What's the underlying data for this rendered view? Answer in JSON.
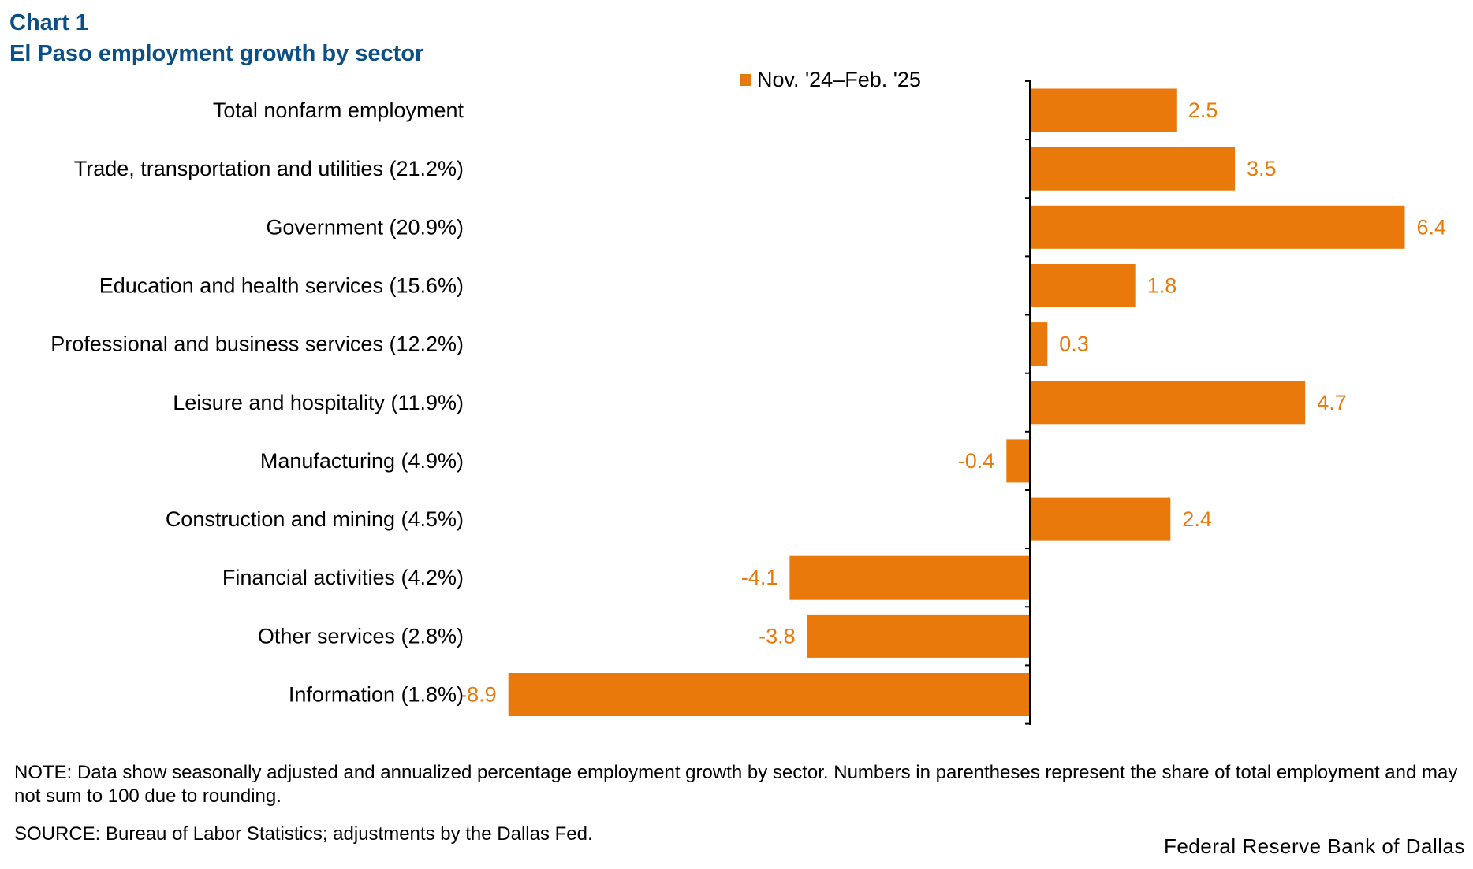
{
  "chart_label": "Chart 1",
  "colors": {
    "title": "#0b4f85",
    "bar": "#e8790a",
    "data_label": "#e8790a",
    "axis": "#000000"
  },
  "chart_data": {
    "type": "bar",
    "orientation": "horizontal",
    "title": "El Paso employment growth by sector",
    "categories": [
      "Total nonfarm employment",
      "Trade, transportation and utilities (21.2%)",
      "Government (20.9%)",
      "Education and health services (15.6%)",
      "Professional and business services (12.2%)",
      "Leisure and hospitality (11.9%)",
      "Manufacturing (4.9%)",
      "Construction and mining (4.5%)",
      "Financial activities (4.2%)",
      "Other services (2.8%)",
      "Information (1.8%)"
    ],
    "series": [
      {
        "name": "Nov. '24–Feb. '25",
        "values": [
          2.5,
          3.5,
          6.4,
          1.8,
          0.3,
          4.7,
          -0.4,
          2.4,
          -4.1,
          -3.8,
          -8.9
        ],
        "labels": [
          "2.5",
          "3.5",
          "6.4",
          "1.8",
          "0.3",
          "4.7",
          "-0.4",
          "2.4",
          "-4.1",
          "-3.8",
          "-8.9"
        ]
      }
    ],
    "xlim": [
      -10,
      8
    ],
    "legend_position": "top-center",
    "grid": false,
    "xlabel": "",
    "ylabel": ""
  },
  "footer": {
    "note": "NOTE: Data show seasonally adjusted and annualized percentage employment growth by sector. Numbers in parentheses represent the share of total employment and may not sum to 100 due to rounding.",
    "source": "SOURCE: Bureau of Labor Statistics; adjustments by the Dallas Fed.",
    "credit": "Federal Reserve Bank of Dallas"
  }
}
